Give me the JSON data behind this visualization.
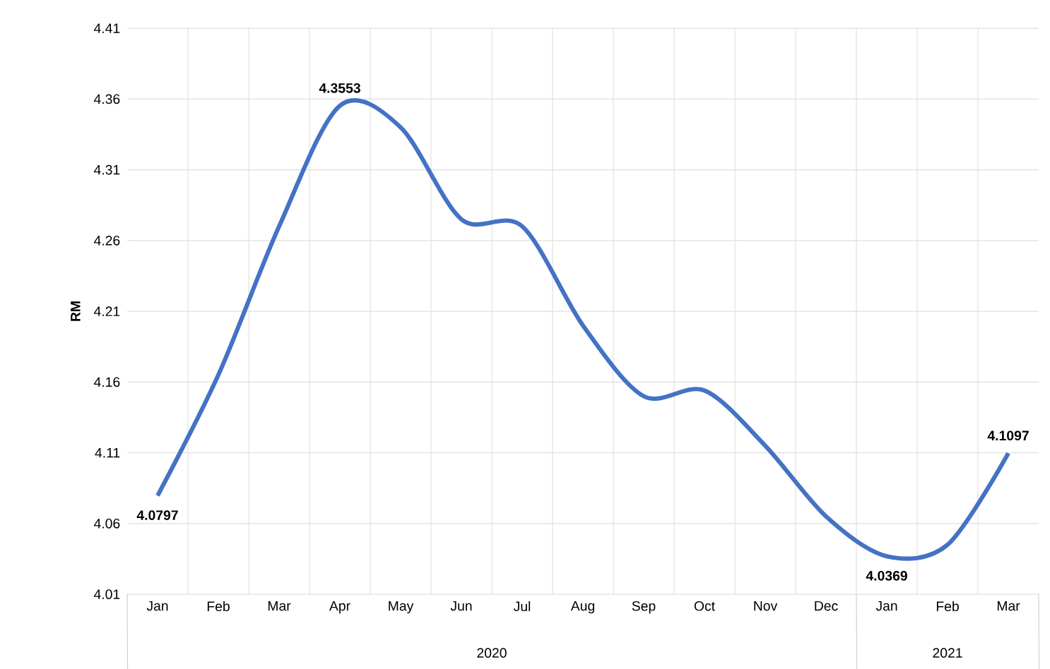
{
  "chart_data": {
    "type": "line",
    "ylabel": "RM",
    "categories": [
      "Jan",
      "Feb",
      "Mar",
      "Apr",
      "May",
      "Jun",
      "Jul",
      "Aug",
      "Sep",
      "Oct",
      "Nov",
      "Dec",
      "Jan",
      "Feb",
      "Mar"
    ],
    "series": [
      {
        "color": "#4472c4",
        "values": [
          4.0797,
          4.165,
          4.27,
          4.3553,
          4.34,
          4.275,
          4.27,
          4.2,
          4.15,
          4.154,
          4.115,
          4.065,
          4.0369,
          4.045,
          4.1097
        ],
        "value_labels": [
          "4.0797",
          null,
          null,
          "4.3553",
          null,
          null,
          null,
          null,
          null,
          null,
          null,
          null,
          "4.0369",
          null,
          "4.1097"
        ]
      }
    ],
    "ylim": [
      4.01,
      4.41
    ],
    "yticks": [
      4.01,
      4.06,
      4.11,
      4.16,
      4.21,
      4.26,
      4.31,
      4.36,
      4.41
    ],
    "grid": true,
    "marker": "none",
    "line_style": "solid",
    "annotations": [
      "2020",
      "2021"
    ]
  }
}
